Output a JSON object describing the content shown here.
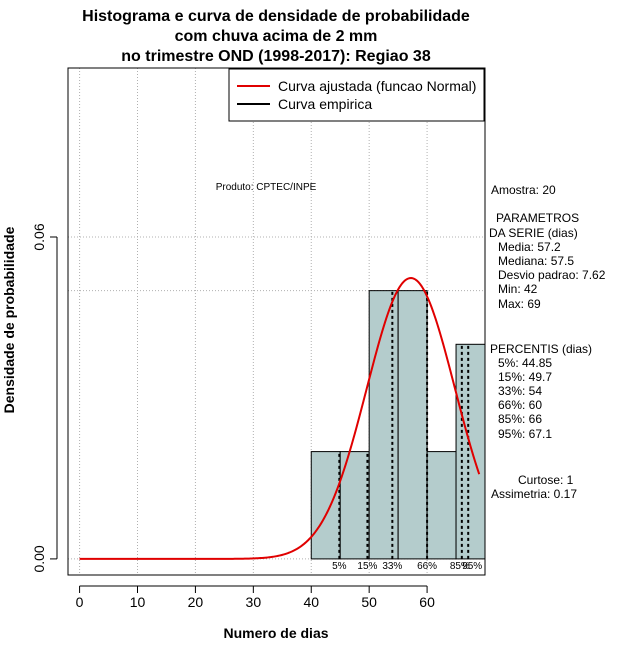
{
  "chart_data": {
    "type": "histogram",
    "title_lines": [
      "Histograma e curva de densidade de probabilidade",
      "com chuva acima de 2 mm",
      "no trimestre OND (1998-2017): Regiao 38"
    ],
    "xlabel": "Numero de dias",
    "ylabel": "Densidade de probabilidade",
    "xlim": [
      -2,
      70
    ],
    "ylim": [
      -0.003,
      0.0915
    ],
    "x_ticks": [
      0,
      10,
      20,
      30,
      40,
      50,
      60
    ],
    "y_ticks": [
      0.0,
      0.06
    ],
    "y_tick_labels": [
      "0.00",
      "0.06"
    ],
    "grid": true,
    "grid_h_extra": [
      0.05
    ],
    "bins": [
      {
        "start": 40,
        "end": 45,
        "density": 0.02
      },
      {
        "start": 45,
        "end": 50,
        "density": 0.02
      },
      {
        "start": 50,
        "end": 55,
        "density": 0.05
      },
      {
        "start": 55,
        "end": 60,
        "density": 0.05
      },
      {
        "start": 60,
        "end": 65,
        "density": 0.02
      },
      {
        "start": 65,
        "end": 70,
        "density": 0.04
      }
    ],
    "normal_curve": {
      "mean": 57.2,
      "sd": 7.62,
      "x_from": 0,
      "x_to": 69
    },
    "percentile_lines": [
      {
        "label": "5%",
        "value": 44.85
      },
      {
        "label": "15%",
        "value": 49.7
      },
      {
        "label": "33%",
        "value": 54
      },
      {
        "label": "66%",
        "value": 60
      },
      {
        "label": "85%",
        "value": 66
      },
      {
        "label": "95%",
        "value": 67.1
      }
    ],
    "legend": {
      "position": "top-right",
      "entries": [
        {
          "label": "Curva ajustada (funcao Normal)",
          "color": "#e00000"
        },
        {
          "label": "Curva empirica",
          "color": "#000000"
        }
      ]
    },
    "product_label": "Produto: CPTEC/INPE",
    "colors": {
      "bar_fill": "#b4cccc",
      "curve": "#e00000",
      "grid": "#b0b0b0"
    }
  },
  "stats": {
    "amostra": "Amostra: 20",
    "parametros_title": "PARAMETROS",
    "parametros_subtitle": "DA SERIE (dias)",
    "media": "Media: 57.2",
    "mediana": "Mediana: 57.5",
    "desvio": "Desvio padrao: 7.62",
    "min": "Min: 42",
    "max": "Max: 69",
    "percentis_title": "PERCENTIS (dias)",
    "p5": "5%: 44.85",
    "p15": "15%: 49.7",
    "p33": "33%: 54",
    "p66": "66%: 60",
    "p85": "85%: 66",
    "p95": "95%: 67.1",
    "curtose": "Curtose: 1",
    "assimetria": "Assimetria: 0.17"
  }
}
